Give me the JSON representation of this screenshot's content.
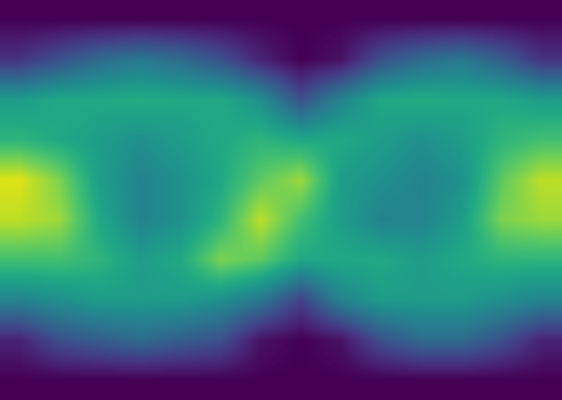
{
  "chart_data": {
    "type": "heatmap",
    "color": "viridis",
    "tick_labels": false,
    "color_range": [
      0,
      1
    ],
    "cells": [
      [
        0,
        0,
        0,
        0,
        0,
        0,
        0,
        0,
        0,
        0,
        0,
        0,
        0,
        0
      ],
      [
        0.15,
        0.25,
        0.35,
        0.4,
        0.35,
        0.25,
        0.1,
        0.0,
        0.05,
        0.25,
        0.35,
        0.4,
        0.3,
        0.15
      ],
      [
        0.55,
        0.6,
        0.6,
        0.62,
        0.6,
        0.6,
        0.5,
        0.25,
        0.45,
        0.6,
        0.62,
        0.6,
        0.6,
        0.55
      ],
      [
        0.65,
        0.6,
        0.55,
        0.5,
        0.55,
        0.6,
        0.65,
        0.6,
        0.6,
        0.55,
        0.5,
        0.55,
        0.65,
        0.7
      ],
      [
        0.95,
        0.8,
        0.55,
        0.45,
        0.5,
        0.6,
        0.75,
        0.85,
        0.55,
        0.5,
        0.45,
        0.5,
        0.75,
        0.9
      ],
      [
        0.9,
        0.85,
        0.6,
        0.45,
        0.5,
        0.65,
        0.9,
        0.7,
        0.55,
        0.45,
        0.45,
        0.55,
        0.8,
        0.85
      ],
      [
        0.7,
        0.7,
        0.65,
        0.55,
        0.6,
        0.8,
        0.75,
        0.6,
        0.6,
        0.6,
        0.55,
        0.6,
        0.65,
        0.65
      ],
      [
        0.45,
        0.5,
        0.55,
        0.55,
        0.55,
        0.5,
        0.4,
        0.2,
        0.45,
        0.55,
        0.55,
        0.55,
        0.5,
        0.45
      ],
      [
        0.1,
        0.25,
        0.3,
        0.35,
        0.3,
        0.25,
        0.05,
        0.0,
        0.05,
        0.25,
        0.35,
        0.35,
        0.25,
        0.1
      ],
      [
        0,
        0,
        0,
        0,
        0,
        0,
        0,
        0,
        0,
        0,
        0,
        0,
        0,
        0
      ]
    ]
  }
}
